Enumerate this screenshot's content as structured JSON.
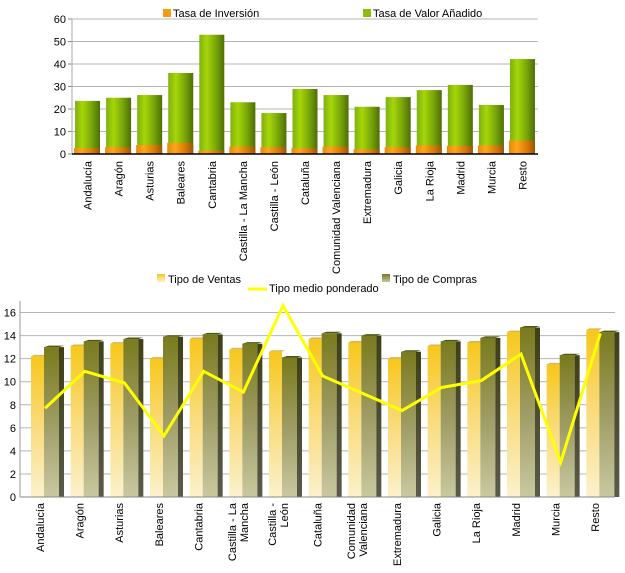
{
  "chart_data": [
    {
      "type": "bar",
      "title": "",
      "xlabel": "",
      "ylabel": "",
      "ylim": [
        0,
        60
      ],
      "yticks": [
        "0",
        "10",
        "20",
        "30",
        "40",
        "50",
        "60"
      ],
      "grid": true,
      "legend_position": "top",
      "categories": [
        "Andalucía",
        "Aragón",
        "Asturias",
        "Baleares",
        "Cantabria",
        "Castilla - La Mancha",
        "Castilla - León",
        "Cataluña",
        "Comunidad Valenciana",
        "Extremadura",
        "Galicia",
        "La Rioja",
        "Madrid",
        "Murcia",
        "Resto"
      ],
      "series": [
        {
          "name": "Tasa de Inversión",
          "color": "#f39c12",
          "values": [
            2.6,
            3.0,
            4.0,
            5.0,
            1.5,
            3.3,
            3.0,
            2.6,
            3.3,
            2.1,
            3.0,
            3.8,
            3.6,
            3.8,
            6.0
          ]
        },
        {
          "name": "Tasa de Valor Añadido",
          "color": "#8fbc0f",
          "values": [
            23.6,
            25.0,
            26.2,
            36.0,
            53.0,
            23.0,
            18.2,
            28.9,
            26.2,
            21.0,
            25.3,
            28.4,
            30.7,
            21.8,
            42.2
          ]
        }
      ]
    },
    {
      "type": "bar",
      "title": "",
      "xlabel": "",
      "ylabel": "",
      "ylim": [
        0,
        17
      ],
      "yticks": [
        "0",
        "2",
        "4",
        "6",
        "8",
        "10",
        "12",
        "14",
        "16"
      ],
      "grid": true,
      "legend_position": "top",
      "categories": [
        [
          "Andalucía"
        ],
        [
          "Aragón"
        ],
        [
          "Asturias"
        ],
        [
          "Baleares"
        ],
        [
          "Cantabria"
        ],
        [
          "Castilla - La",
          "Mancha"
        ],
        [
          "Castilla -",
          "León"
        ],
        [
          "Cataluña"
        ],
        [
          "Comunidad",
          "Valenciana"
        ],
        [
          "Extremadura"
        ],
        [
          "Galicia"
        ],
        [
          "La Rioja"
        ],
        [
          "Madrid"
        ],
        [
          "Murcia"
        ],
        [
          "Resto"
        ]
      ],
      "series": [
        {
          "name": "Tipo de Ventas",
          "type": "bar",
          "color": "#f5c518",
          "values": [
            12.2,
            13.1,
            13.3,
            12.0,
            13.7,
            12.8,
            12.6,
            13.7,
            13.4,
            12.0,
            13.1,
            13.4,
            14.3,
            11.5,
            14.5
          ]
        },
        {
          "name": "Tipo de Compras",
          "type": "bar",
          "color": "#7d7a1e",
          "values": [
            13.0,
            13.5,
            13.7,
            13.9,
            14.1,
            13.3,
            12.1,
            14.2,
            14.0,
            12.6,
            13.5,
            13.8,
            14.7,
            12.3,
            14.3
          ]
        },
        {
          "name": "Tipo medio ponderado",
          "type": "line",
          "color": "#ffff00",
          "values": [
            7.7,
            10.9,
            9.9,
            5.3,
            10.9,
            9.1,
            16.6,
            10.5,
            9.0,
            7.5,
            9.5,
            10.1,
            12.4,
            3.0,
            14.2
          ]
        }
      ]
    }
  ]
}
